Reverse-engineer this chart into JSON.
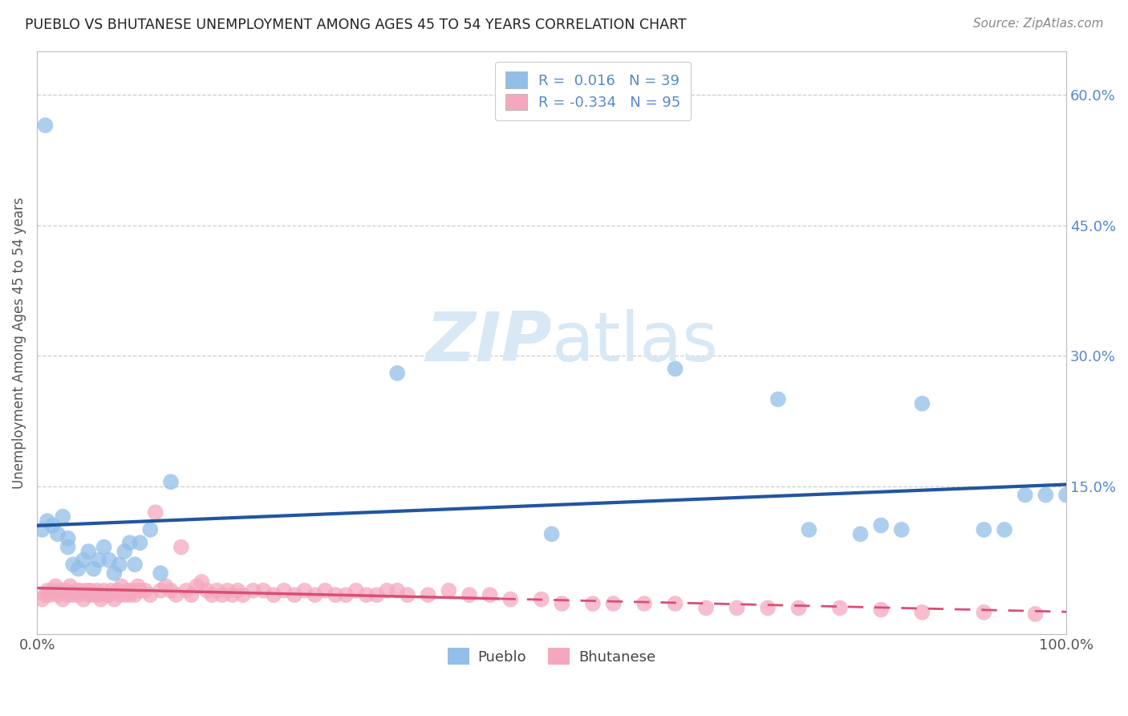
{
  "title": "PUEBLO VS BHUTANESE UNEMPLOYMENT AMONG AGES 45 TO 54 YEARS CORRELATION CHART",
  "source": "Source: ZipAtlas.com",
  "ylabel": "Unemployment Among Ages 45 to 54 years",
  "xlim": [
    0,
    1.0
  ],
  "ylim": [
    -0.02,
    0.65
  ],
  "pueblo_r": "0.016",
  "pueblo_n": "39",
  "bhutanese_r": "-0.334",
  "bhutanese_n": "95",
  "pueblo_color": "#92BEE8",
  "bhutanese_color": "#F4A8BE",
  "pueblo_line_color": "#2155A0",
  "bhutanese_line_color": "#D94F75",
  "watermark_color": "#D8E8F5",
  "grid_color": "#CCCCCC",
  "tick_color": "#5588CC",
  "pueblo_x": [
    0.01,
    0.02,
    0.025,
    0.03,
    0.035,
    0.04,
    0.045,
    0.05,
    0.055,
    0.06,
    0.065,
    0.07,
    0.075,
    0.08,
    0.085,
    0.09,
    0.095,
    0.1,
    0.11,
    0.12,
    0.13,
    0.008,
    0.015,
    0.005,
    0.35,
    0.5,
    0.62,
    0.72,
    0.75,
    0.8,
    0.82,
    0.84,
    0.86,
    0.92,
    0.94,
    0.96,
    0.98,
    1.0,
    0.03
  ],
  "pueblo_y": [
    0.11,
    0.095,
    0.115,
    0.08,
    0.06,
    0.055,
    0.065,
    0.075,
    0.055,
    0.065,
    0.08,
    0.065,
    0.05,
    0.06,
    0.075,
    0.085,
    0.06,
    0.085,
    0.1,
    0.05,
    0.155,
    0.565,
    0.105,
    0.1,
    0.28,
    0.095,
    0.285,
    0.25,
    0.1,
    0.095,
    0.105,
    0.1,
    0.245,
    0.1,
    0.1,
    0.14,
    0.14,
    0.14,
    0.09
  ],
  "bhutanese_x": [
    0.005,
    0.008,
    0.01,
    0.012,
    0.015,
    0.018,
    0.02,
    0.022,
    0.025,
    0.028,
    0.03,
    0.032,
    0.035,
    0.038,
    0.04,
    0.042,
    0.045,
    0.048,
    0.05,
    0.052,
    0.055,
    0.058,
    0.06,
    0.062,
    0.065,
    0.068,
    0.07,
    0.072,
    0.075,
    0.078,
    0.08,
    0.082,
    0.085,
    0.088,
    0.09,
    0.092,
    0.095,
    0.098,
    0.1,
    0.105,
    0.11,
    0.115,
    0.12,
    0.125,
    0.13,
    0.135,
    0.14,
    0.145,
    0.15,
    0.155,
    0.16,
    0.165,
    0.17,
    0.175,
    0.18,
    0.185,
    0.19,
    0.195,
    0.2,
    0.21,
    0.22,
    0.23,
    0.24,
    0.25,
    0.26,
    0.27,
    0.28,
    0.29,
    0.3,
    0.31,
    0.32,
    0.33,
    0.34,
    0.35,
    0.36,
    0.38,
    0.4,
    0.42,
    0.44,
    0.46,
    0.49,
    0.51,
    0.54,
    0.56,
    0.59,
    0.62,
    0.65,
    0.68,
    0.71,
    0.74,
    0.78,
    0.82,
    0.86,
    0.92,
    0.97
  ],
  "bhutanese_y": [
    0.02,
    0.025,
    0.03,
    0.025,
    0.03,
    0.035,
    0.025,
    0.03,
    0.02,
    0.03,
    0.025,
    0.035,
    0.025,
    0.03,
    0.025,
    0.03,
    0.02,
    0.03,
    0.025,
    0.03,
    0.025,
    0.03,
    0.025,
    0.02,
    0.03,
    0.025,
    0.025,
    0.03,
    0.02,
    0.03,
    0.025,
    0.035,
    0.025,
    0.03,
    0.025,
    0.03,
    0.025,
    0.035,
    0.03,
    0.03,
    0.025,
    0.12,
    0.03,
    0.035,
    0.03,
    0.025,
    0.08,
    0.03,
    0.025,
    0.035,
    0.04,
    0.03,
    0.025,
    0.03,
    0.025,
    0.03,
    0.025,
    0.03,
    0.025,
    0.03,
    0.03,
    0.025,
    0.03,
    0.025,
    0.03,
    0.025,
    0.03,
    0.025,
    0.025,
    0.03,
    0.025,
    0.025,
    0.03,
    0.03,
    0.025,
    0.025,
    0.03,
    0.025,
    0.025,
    0.02,
    0.02,
    0.015,
    0.015,
    0.015,
    0.015,
    0.015,
    0.01,
    0.01,
    0.01,
    0.01,
    0.01,
    0.008,
    0.005,
    0.005,
    0.003
  ]
}
